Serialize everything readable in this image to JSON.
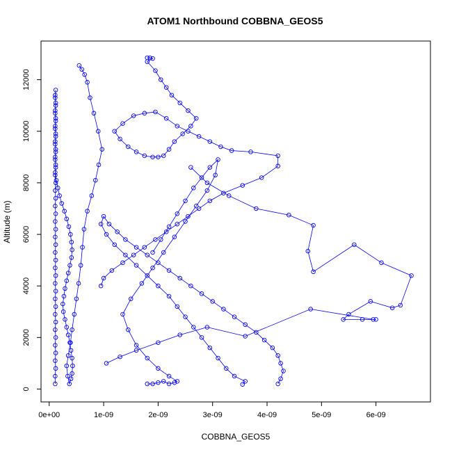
{
  "chart_data": {
    "type": "scatter",
    "title": "ATOM1 Northbound COBBNA_GEOS5",
    "xlabel": "COBBNA_GEOS5",
    "ylabel": "Altitude (m)",
    "xlim": [
      -1.5e-10,
      7e-09
    ],
    "ylim": [
      -500,
      13500
    ],
    "x_ticks": [
      0,
      1e-09,
      2e-09,
      3e-09,
      4e-09,
      5e-09,
      6e-09
    ],
    "x_tick_labels": [
      "0e+00",
      "1e-09",
      "2e-09",
      "3e-09",
      "4e-09",
      "5e-09",
      "6e-09"
    ],
    "y_ticks": [
      0,
      2000,
      4000,
      6000,
      8000,
      10000,
      12000
    ],
    "y_tick_labels": [
      "0",
      "2000",
      "4000",
      "6000",
      "8000",
      "10000",
      "12000"
    ],
    "grid": false,
    "legend": "none",
    "marker": "open-circle",
    "connect_points": true,
    "color": "#0000ff",
    "series": [
      {
        "x": [
          1.1e-10,
          1.1e-10,
          1.2e-10,
          1.1e-10,
          1.2e-10,
          1.1e-10,
          1.2e-10,
          1.1e-10,
          1.2e-10,
          1.1e-10,
          1.2e-10,
          1.1e-10,
          1.2e-10,
          1.1e-10,
          1.2e-10,
          1.1e-10,
          1.2e-10,
          1.1e-10,
          1.2e-10,
          1.1e-10,
          1.2e-10,
          1.1e-10,
          1.2e-10,
          1.1e-10,
          1.2e-10,
          1.1e-10,
          1.2e-10,
          1.1e-10,
          1.2e-10,
          1.1e-10,
          1.2e-10,
          1.1e-10,
          1.2e-10,
          1.1e-10,
          1.2e-10,
          1.1e-10,
          1.2e-10,
          1.1e-10,
          1.2e-10,
          1.1e-10,
          1.2e-10,
          1.1e-10,
          1.2e-10,
          1.1e-10,
          1.2e-10,
          1.1e-10,
          1.2e-10,
          1.1e-10,
          1.2e-10,
          1.1e-10,
          1.3e-10,
          1.6e-10,
          1.9e-10,
          2.3e-10,
          2.8e-10,
          3.2e-10,
          3.6e-10,
          3.9e-10,
          4.1e-10,
          4.2e-10,
          4.1e-10,
          3.8e-10,
          3.5e-10,
          3.2e-10,
          2.9e-10,
          2.7e-10,
          2.5e-10,
          2.6e-10,
          2.9e-10,
          3.2e-10,
          3.5e-10,
          3.8e-10,
          4e-10,
          4.2e-10,
          4.3e-10,
          4.2e-10,
          4e-10,
          3.7e-10,
          3.4e-10,
          3.2e-10,
          3.5e-10,
          3.9e-10,
          4.2e-10,
          4.6e-10,
          5e-10,
          5.4e-10,
          5.8e-10,
          6.1e-10,
          6.4e-10,
          7e-10,
          7.8e-10,
          8.5e-10,
          9.1e-10,
          9.7e-10,
          9e-10,
          8.2e-10,
          7.5e-10,
          7e-10,
          6.5e-10,
          6e-10,
          5.5e-10
        ],
        "y": [
          200,
          500,
          800,
          1100,
          1400,
          1700,
          2000,
          2300,
          2600,
          2900,
          3200,
          3500,
          3800,
          4100,
          4400,
          4700,
          5000,
          5300,
          5600,
          5900,
          6200,
          6500,
          6800,
          7100,
          7400,
          7700,
          8000,
          8300,
          8600,
          8900,
          9200,
          9500,
          9800,
          10100,
          10400,
          10700,
          11000,
          11300,
          11600,
          11400,
          11100,
          10800,
          10500,
          10200,
          9900,
          9600,
          9300,
          9000,
          8700,
          8400,
          8100,
          7800,
          7500,
          7200,
          6900,
          6600,
          6300,
          6000,
          5700,
          5400,
          5100,
          4800,
          4500,
          4200,
          3900,
          3600,
          3300,
          3000,
          2700,
          2400,
          2100,
          1800,
          1500,
          1200,
          900,
          600,
          400,
          200,
          500,
          900,
          1300,
          1800,
          2300,
          2900,
          3500,
          4100,
          4800,
          5500,
          6200,
          6900,
          7500,
          8100,
          8700,
          9300,
          10000,
          10700,
          11300,
          11900,
          12200,
          12400,
          12550
        ]
      },
      {
        "x": [
          1.8e-09,
          1.85e-09,
          1.9e-09,
          1.8e-09,
          1.95e-09,
          2.05e-09,
          2.15e-09,
          2.25e-09,
          2.4e-09,
          2.55e-09,
          2.7e-09,
          2.6e-09,
          2.45e-09,
          2.3e-09,
          2.2e-09,
          2.1e-09,
          2e-09,
          1.9e-09,
          1.75e-09,
          1.6e-09,
          1.45e-09,
          1.3e-09,
          1.2e-09,
          1.35e-09,
          1.55e-09,
          1.75e-09,
          1.95e-09,
          2.15e-09,
          2.35e-09,
          2.55e-09,
          2.75e-09,
          2.95e-09,
          3.15e-09,
          3.35e-09,
          3.7e-09,
          4.2e-09,
          4.2e-09,
          3.9e-09,
          3.55e-09,
          3.2e-09,
          2.95e-09,
          2.75e-09,
          2.55e-09,
          2.35e-09,
          2.15e-09,
          1.95e-09,
          1.75e-09,
          1.55e-09,
          1.35e-09,
          1.15e-09,
          1e-09,
          9.5e-10
        ],
        "y": [
          12850,
          12850,
          12820,
          12700,
          12350,
          12000,
          11700,
          11400,
          11100,
          10800,
          10500,
          10200,
          9900,
          9600,
          9300,
          9050,
          9000,
          9000,
          9050,
          9200,
          9400,
          9700,
          10000,
          10300,
          10600,
          10700,
          10750,
          10500,
          10200,
          10000,
          9800,
          9600,
          9400,
          9250,
          9200,
          9050,
          8650,
          8200,
          7900,
          7600,
          7300,
          7000,
          6700,
          6400,
          6100,
          5800,
          5500,
          5200,
          4900,
          4600,
          4300,
          4000
        ]
      },
      {
        "x": [
          2.6e-09,
          2.9e-09,
          3.3e-09,
          3.8e-09,
          4.4e-09,
          4.85e-09,
          4.75e-09,
          4.85e-09,
          5.6e-09,
          6.1e-09,
          6.65e-09,
          6.45e-09,
          6.3e-09,
          5.9e-09,
          5.5e-09,
          5.4e-09,
          5.75e-09,
          6e-09,
          5.95e-09,
          4.8e-09,
          3.6e-09,
          2.9e-09,
          2.4e-09,
          2e-09,
          1.6e-09,
          1.3e-09,
          1.05e-09
        ],
        "y": [
          8600,
          8000,
          7500,
          7000,
          6750,
          6350,
          5350,
          4550,
          5600,
          4900,
          4400,
          3250,
          3150,
          3400,
          2900,
          2700,
          2700,
          2700,
          2700,
          3100,
          2050,
          2400,
          2100,
          1800,
          1500,
          1250,
          1000
        ]
      },
      {
        "x": [
          4.2e-09,
          4.25e-09,
          4.3e-09,
          4.25e-09,
          4.2e-09,
          4.1e-09,
          3.95e-09,
          3.8e-09,
          3.6e-09,
          3.4e-09,
          3.2e-09,
          3e-09,
          2.8e-09,
          2.6e-09,
          2.4e-09,
          2.2e-09,
          2e-09,
          1.8e-09,
          1.6e-09,
          1.4e-09,
          1.25e-09,
          1.1e-09,
          1e-09,
          9.5e-10,
          1.05e-09,
          1.2e-09,
          1.4e-09,
          1.6e-09,
          1.8e-09,
          2e-09,
          2.2e-09,
          2.35e-09,
          2.5e-09,
          2.65e-09,
          2.8e-09,
          2.95e-09,
          3.1e-09,
          3.25e-09,
          3.4e-09,
          3.6e-09,
          3.55e-09
        ],
        "y": [
          200,
          400,
          700,
          1000,
          1300,
          1600,
          1900,
          2200,
          2500,
          2800,
          3100,
          3400,
          3700,
          4000,
          4300,
          4600,
          4900,
          5200,
          5500,
          5800,
          6100,
          6400,
          6700,
          6400,
          6000,
          5600,
          5200,
          4800,
          4400,
          4000,
          3600,
          3200,
          2800,
          2400,
          2000,
          1600,
          1200,
          800,
          500,
          300,
          180
        ]
      },
      {
        "x": [
          1.8e-09,
          1.9e-09,
          2e-09,
          2.1e-09,
          2.2e-09,
          2.3e-09,
          2.35e-09,
          2.2e-09,
          2e-09,
          1.8e-09,
          1.6e-09,
          1.45e-09,
          1.35e-09,
          1.5e-09,
          1.7e-09,
          1.9e-09,
          2.1e-09,
          2.3e-09,
          2.5e-09,
          2.7e-09,
          2.9e-09,
          3.05e-09,
          3.1e-09,
          2.95e-09,
          2.8e-09,
          2.65e-09,
          2.5e-09,
          2.35e-09,
          2.2e-09,
          2.05e-09,
          1.9e-09
        ],
        "y": [
          200,
          200,
          250,
          300,
          200,
          250,
          300,
          500,
          800,
          1200,
          1700,
          2300,
          2900,
          3500,
          4100,
          4700,
          5300,
          5900,
          6500,
          7100,
          7700,
          8300,
          8900,
          8600,
          8200,
          7800,
          7300,
          6800,
          6300,
          5800,
          5300
        ]
      }
    ]
  }
}
